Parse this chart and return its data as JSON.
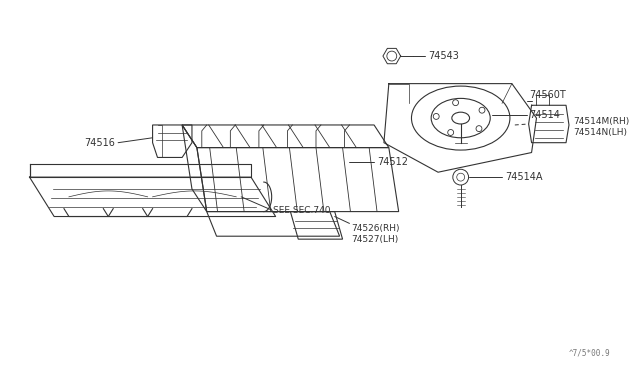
{
  "bg_color": "#ffffff",
  "line_color": "#333333",
  "text_color": "#333333",
  "fig_width": 6.4,
  "fig_height": 3.72,
  "watermark": "^7/5*00.9",
  "label_74543": "74543",
  "label_74560T": "74560T",
  "label_74514": "74514",
  "label_74514M": "74514M(RH)",
  "label_74514N": "74514N(LH)",
  "label_74514A": "74514A",
  "label_74512": "74512",
  "label_74516": "74516",
  "label_74526": "74526(RH)",
  "label_74527": "74527(LH)",
  "label_sec": "SEE SEC.740"
}
